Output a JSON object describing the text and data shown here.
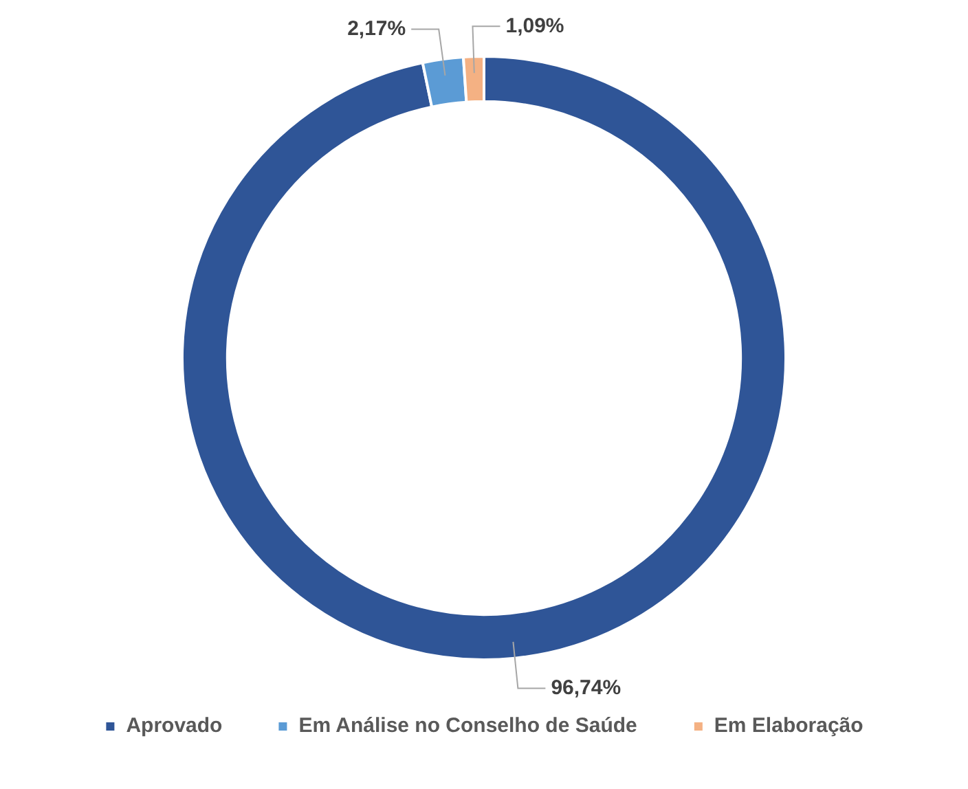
{
  "chart_data": {
    "type": "donut",
    "categories": [
      "Aprovado",
      "Em Análise no Conselho de Saúde",
      "Em Elaboração"
    ],
    "values": [
      96.74,
      2.17,
      1.09
    ],
    "colors": [
      "#2f5597",
      "#5b9bd5",
      "#f4b183"
    ],
    "value_labels": [
      "96,74%",
      "2,17%",
      "1,09%"
    ],
    "legend": "bottom"
  }
}
